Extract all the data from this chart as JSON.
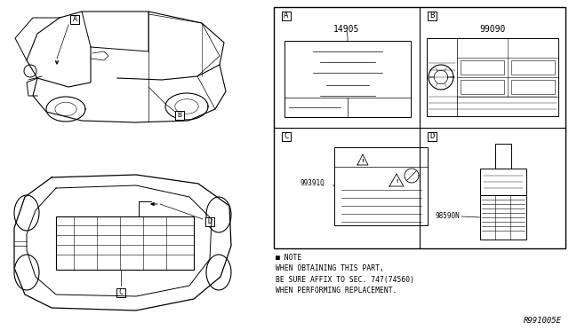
{
  "bg_color": "#ffffff",
  "line_color": "#000000",
  "fig_width": 6.4,
  "fig_height": 3.72,
  "dpi": 100,
  "panel_A_label": "A",
  "panel_B_label": "B",
  "panel_C_label": "C",
  "panel_D_label": "D",
  "part_num_A": "14905",
  "part_num_B": "99090",
  "part_num_C": "99391Q",
  "part_num_D": "98590N",
  "note_text": "■ NOTE\nWHEN OBTAINING THIS PART,\nBE SURE AFFIX TO SEC. 747(74560)\nWHEN PERFORMING REPLACEMENT.",
  "ref_code": "R991005E"
}
